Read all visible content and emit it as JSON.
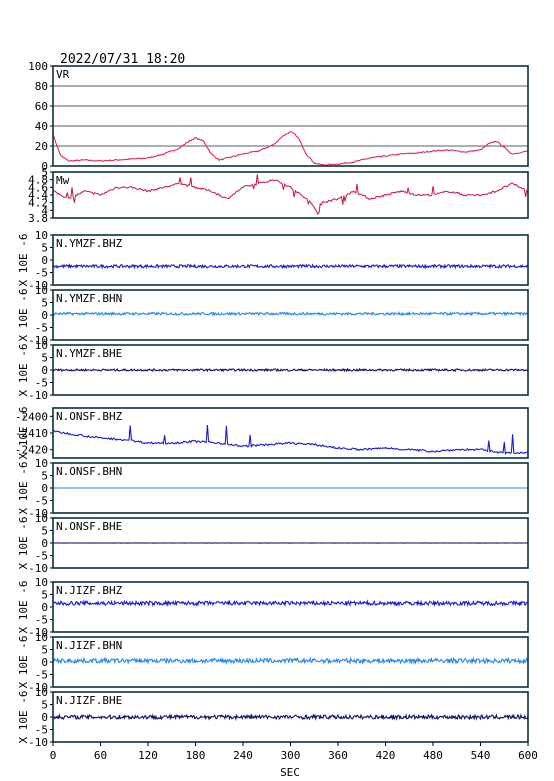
{
  "header": {
    "timestamp": "2022/07/31  18:20"
  },
  "x_axis": {
    "label": "SEC",
    "ticks": [
      0,
      60,
      120,
      180,
      240,
      300,
      360,
      420,
      480,
      540,
      600
    ],
    "range": [
      0,
      600
    ]
  },
  "colors": {
    "vr": "#dd1844",
    "mw": "#cc1040",
    "bhz": "#1a1acc",
    "bhn": "#2288ee",
    "bhe": "#10106a",
    "frame": "#0a3040"
  },
  "chart_data": [
    {
      "type": "line",
      "title": "VR",
      "ylim": [
        0,
        100
      ],
      "ticks": [
        0,
        20,
        40,
        60,
        80,
        100
      ],
      "grid": true,
      "series": [
        {
          "x": [
            0,
            5,
            10,
            20,
            40,
            60,
            80,
            100,
            120,
            140,
            160,
            170,
            180,
            190,
            200,
            210,
            220,
            240,
            260,
            280,
            290,
            300,
            305,
            310,
            320,
            330,
            340,
            360,
            380,
            400,
            420,
            440,
            460,
            480,
            500,
            520,
            540,
            550,
            560,
            580,
            600
          ],
          "values": [
            32,
            20,
            10,
            5,
            6,
            5,
            6,
            7,
            8,
            12,
            18,
            24,
            28,
            25,
            12,
            6,
            8,
            12,
            15,
            22,
            30,
            34,
            32,
            28,
            12,
            3,
            1,
            2,
            4,
            8,
            10,
            12,
            13,
            15,
            16,
            14,
            16,
            22,
            25,
            12,
            15
          ]
        }
      ]
    },
    {
      "type": "line",
      "title": "Mw",
      "ylim": [
        3.8,
        5.0
      ],
      "ticks": [
        3.8,
        4.0,
        4.2,
        4.4,
        4.6,
        4.8,
        5.0
      ],
      "grid": false,
      "series": [
        {
          "x": [
            0,
            10,
            20,
            40,
            60,
            80,
            100,
            120,
            140,
            160,
            180,
            200,
            220,
            240,
            260,
            280,
            300,
            320,
            330,
            335,
            340,
            360,
            380,
            400,
            420,
            440,
            460,
            480,
            500,
            520,
            540,
            560,
            580,
            590,
            600
          ],
          "values": [
            4.5,
            4.4,
            4.3,
            4.5,
            4.4,
            4.6,
            4.6,
            4.5,
            4.6,
            4.7,
            4.6,
            4.5,
            4.3,
            4.6,
            4.7,
            4.8,
            4.6,
            4.3,
            4.1,
            3.9,
            4.2,
            4.3,
            4.5,
            4.3,
            4.4,
            4.5,
            4.4,
            4.4,
            4.5,
            4.4,
            4.4,
            4.5,
            4.7,
            4.6,
            4.5
          ]
        }
      ]
    },
    {
      "type": "line",
      "title": "N.YMZF.BHZ",
      "ylabel": "X 10E -6",
      "ylim": [
        -10,
        10
      ],
      "ticks": [
        -10,
        -5,
        0,
        5,
        10
      ],
      "series": [
        {
          "name": "N.YMZF.BHZ",
          "baseline": -2.5,
          "noise": 0.6
        }
      ]
    },
    {
      "type": "line",
      "title": "N.YMZF.BHN",
      "ylabel": "X 10E -6",
      "ylim": [
        -10,
        10
      ],
      "ticks": [
        -10,
        -5,
        0,
        5,
        10
      ],
      "series": [
        {
          "name": "N.YMZF.BHN",
          "baseline": 0.5,
          "noise": 0.5
        }
      ]
    },
    {
      "type": "line",
      "title": "N.YMZF.BHE",
      "ylabel": "X 10E -6",
      "ylim": [
        -10,
        10
      ],
      "ticks": [
        -10,
        -5,
        0,
        5,
        10
      ],
      "series": [
        {
          "name": "N.YMZF.BHE",
          "baseline": 0,
          "noise": 0.4
        }
      ]
    },
    {
      "type": "line",
      "title": "N.ONSF.BHZ",
      "ylabel": "X 10E -6",
      "ylim": [
        -2425,
        -2395
      ],
      "ticks": [
        -2420,
        -2410,
        -2400
      ],
      "series": [
        {
          "name": "N.ONSF.BHZ",
          "x": [
            0,
            30,
            60,
            90,
            120,
            150,
            180,
            210,
            240,
            270,
            300,
            330,
            360,
            390,
            420,
            450,
            480,
            510,
            540,
            570,
            600
          ],
          "values": [
            -2409,
            -2411,
            -2413,
            -2414,
            -2416,
            -2416,
            -2415,
            -2416,
            -2418,
            -2417,
            -2416,
            -2417,
            -2419,
            -2420,
            -2419,
            -2420,
            -2421,
            -2420,
            -2420,
            -2422,
            -2422
          ]
        }
      ]
    },
    {
      "type": "line",
      "title": "N.ONSF.BHN",
      "ylabel": "X 10E -6",
      "ylim": [
        -10,
        10
      ],
      "ticks": [
        -10,
        -5,
        0,
        5,
        10
      ],
      "series": [
        {
          "name": "N.ONSF.BHN",
          "baseline": 0,
          "noise": 0.02
        }
      ]
    },
    {
      "type": "line",
      "title": "N.ONSF.BHE",
      "ylabel": "X 10E -6",
      "ylim": [
        -10,
        10
      ],
      "ticks": [
        -10,
        -5,
        0,
        5,
        10
      ],
      "series": [
        {
          "name": "N.ONSF.BHE",
          "baseline": 0,
          "noise": 0.05
        }
      ]
    },
    {
      "type": "line",
      "title": "N.JIZF.BHZ",
      "ylabel": "X 10E -6",
      "ylim": [
        -10,
        10
      ],
      "ticks": [
        -10,
        -5,
        0,
        5,
        10
      ],
      "series": [
        {
          "name": "N.JIZF.BHZ",
          "baseline": 1.5,
          "noise": 0.8
        }
      ]
    },
    {
      "type": "line",
      "title": "N.JIZF.BHN",
      "ylabel": "X 10E -6",
      "ylim": [
        -10,
        10
      ],
      "ticks": [
        -10,
        -5,
        0,
        5,
        10
      ],
      "series": [
        {
          "name": "N.JIZF.BHN",
          "baseline": 0.5,
          "noise": 0.9
        }
      ]
    },
    {
      "type": "line",
      "title": "N.JIZF.BHE",
      "ylabel": "X 10E -6",
      "ylim": [
        -10,
        10
      ],
      "ticks": [
        -10,
        -5,
        0,
        5,
        10
      ],
      "series": [
        {
          "name": "N.JIZF.BHE",
          "baseline": 0,
          "noise": 0.8
        }
      ]
    }
  ]
}
